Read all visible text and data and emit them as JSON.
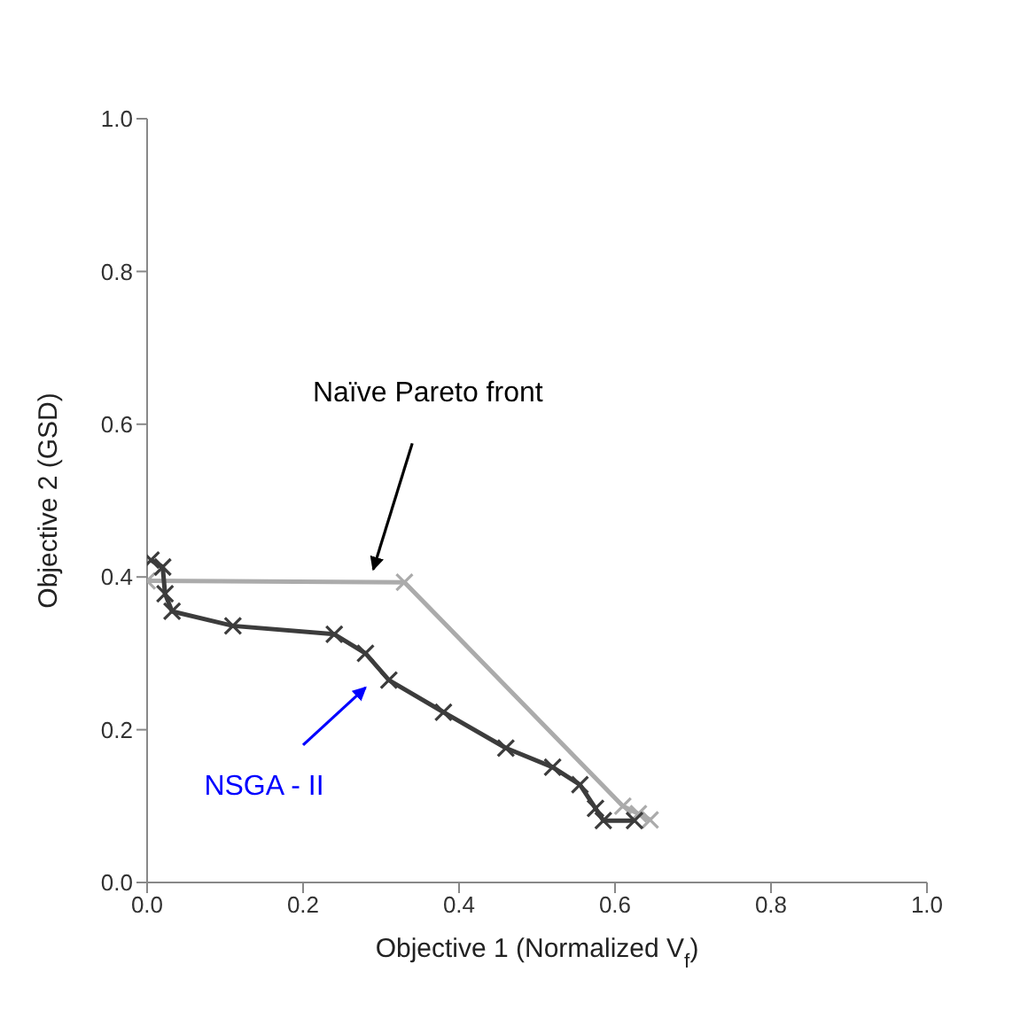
{
  "chart_data": {
    "type": "line",
    "xlabel": "Objective 1 (Normalized V$_{f}$)",
    "ylabel": "Objective 2 (GSD)",
    "xlim": [
      0,
      1
    ],
    "ylim": [
      0,
      1
    ],
    "xticks": [
      {
        "value": 0,
        "label": "0.0"
      },
      {
        "value": 0.2,
        "label": "0.2"
      },
      {
        "value": 0.4,
        "label": "0.4"
      },
      {
        "value": 0.6,
        "label": "0.6"
      },
      {
        "value": 0.8,
        "label": "0.8"
      },
      {
        "value": 1,
        "label": "1.0"
      }
    ],
    "yticks": [
      {
        "value": 0,
        "label": "0.0"
      },
      {
        "value": 0.2,
        "label": "0.2"
      },
      {
        "value": 0.4,
        "label": "0.4"
      },
      {
        "value": 0.6,
        "label": "0.6"
      },
      {
        "value": 0.8,
        "label": "0.8"
      },
      {
        "value": 1,
        "label": "1.0"
      }
    ],
    "marker": "cross",
    "series": [
      {
        "color": "#ababab",
        "x": [
          0.0,
          0.33,
          0.61,
          0.63,
          0.645
        ],
        "values": [
          0.395,
          0.393,
          0.1,
          0.09,
          0.082
        ]
      },
      {
        "color": "#3c3c3c",
        "x": [
          0.005,
          0.02,
          0.023,
          0.032,
          0.11,
          0.24,
          0.28,
          0.31,
          0.38,
          0.46,
          0.52,
          0.555,
          0.575,
          0.585,
          0.625
        ],
        "values": [
          0.422,
          0.413,
          0.378,
          0.355,
          0.336,
          0.325,
          0.3,
          0.265,
          0.223,
          0.176,
          0.151,
          0.128,
          0.097,
          0.081,
          0.081
        ]
      }
    ],
    "annotations": [
      "Naïve Pareto front",
      "NSGA - II"
    ]
  }
}
